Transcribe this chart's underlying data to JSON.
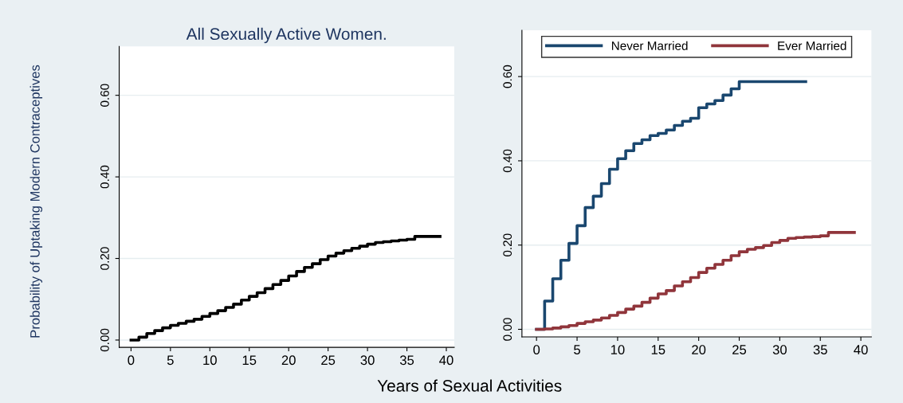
{
  "chart_data": [
    {
      "type": "step",
      "title": "All Sexually Active Women.",
      "xlabel": "Years of Sexual Activities",
      "ylabel": "Probability of Uptaking Modern Contraceptives",
      "xlim": [
        -1.5,
        41
      ],
      "xticks": [
        0,
        5,
        10,
        15,
        20,
        25,
        30,
        35,
        40
      ],
      "ylim": [
        -0.018,
        0.72
      ],
      "yticks": [
        {
          "value": 0,
          "label": "0.00"
        },
        {
          "value": 0.2,
          "label": "0.20"
        },
        {
          "value": 0.4,
          "label": "0.40"
        },
        {
          "value": 0.6,
          "label": "0.60"
        }
      ],
      "grid": "y",
      "legend": false,
      "series": [
        {
          "color": "#000000",
          "x": [
            0,
            1,
            2,
            3,
            4,
            5,
            6,
            7,
            8,
            9,
            10,
            11,
            12,
            13,
            14,
            15,
            16,
            17,
            18,
            19,
            20,
            21,
            22,
            23,
            24,
            25,
            26,
            27,
            28,
            29,
            30,
            31,
            32,
            33,
            34,
            35,
            36,
            39.2
          ],
          "values": [
            0,
            0.007,
            0.016,
            0.023,
            0.03,
            0.036,
            0.041,
            0.046,
            0.051,
            0.058,
            0.065,
            0.072,
            0.08,
            0.088,
            0.098,
            0.107,
            0.116,
            0.126,
            0.136,
            0.146,
            0.157,
            0.168,
            0.178,
            0.187,
            0.197,
            0.206,
            0.213,
            0.219,
            0.225,
            0.23,
            0.235,
            0.239,
            0.241,
            0.243,
            0.245,
            0.247,
            0.254,
            0.254
          ]
        }
      ]
    },
    {
      "type": "step",
      "xlim": [
        -1.8,
        41.3
      ],
      "xticks": [
        0,
        5,
        10,
        15,
        20,
        25,
        30,
        35,
        40
      ],
      "ylim": [
        -0.018,
        0.71
      ],
      "yticks": [
        {
          "value": 0,
          "label": "0.00"
        },
        {
          "value": 0.2,
          "label": "0.20"
        },
        {
          "value": 0.4,
          "label": "0.40"
        },
        {
          "value": 0.6,
          "label": "0.60"
        }
      ],
      "grid": "y",
      "legend": "top",
      "series": [
        {
          "name": "Never Married",
          "color": "#1a476f",
          "x": [
            0,
            1,
            2,
            3,
            4,
            5,
            6,
            7,
            8,
            9,
            10,
            11,
            12,
            13,
            14,
            15,
            16,
            17,
            18,
            19,
            20,
            21,
            22,
            23,
            24,
            25,
            33.2
          ],
          "values": [
            0,
            0.067,
            0.12,
            0.164,
            0.204,
            0.246,
            0.289,
            0.316,
            0.346,
            0.38,
            0.405,
            0.424,
            0.441,
            0.45,
            0.46,
            0.465,
            0.473,
            0.484,
            0.494,
            0.501,
            0.526,
            0.535,
            0.543,
            0.556,
            0.571,
            0.588,
            0.588
          ]
        },
        {
          "name": "Ever Married",
          "color": "#90353b",
          "x": [
            0,
            1,
            2,
            3,
            4,
            5,
            6,
            7,
            8,
            9,
            10,
            11,
            12,
            13,
            14,
            15,
            16,
            17,
            18,
            19,
            20,
            21,
            22,
            23,
            24,
            25,
            26,
            27,
            28,
            29,
            30,
            31,
            32,
            33,
            34,
            35,
            36,
            39.2
          ],
          "values": [
            0,
            0.001,
            0.003,
            0.006,
            0.009,
            0.014,
            0.018,
            0.022,
            0.027,
            0.033,
            0.04,
            0.048,
            0.055,
            0.064,
            0.074,
            0.084,
            0.092,
            0.103,
            0.113,
            0.123,
            0.135,
            0.145,
            0.154,
            0.164,
            0.175,
            0.184,
            0.19,
            0.194,
            0.199,
            0.206,
            0.211,
            0.216,
            0.218,
            0.219,
            0.22,
            0.222,
            0.23,
            0.23
          ]
        }
      ]
    }
  ]
}
